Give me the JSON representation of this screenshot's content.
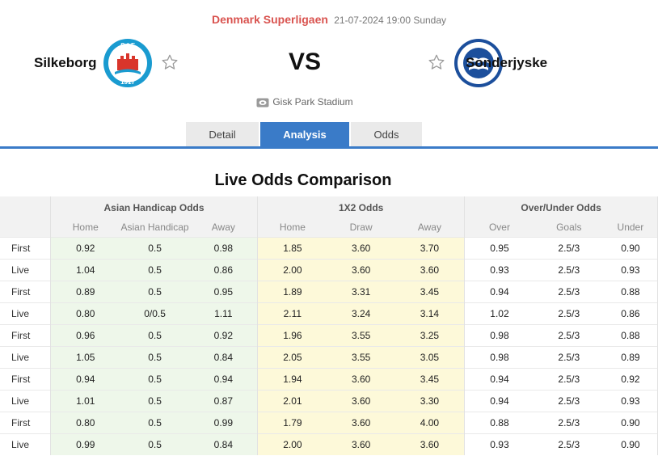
{
  "match": {
    "league": "Denmark Superligaen",
    "datetime": "21-07-2024 19:00 Sunday",
    "home_team": "Silkeborg",
    "away_team": "Sonderjyske",
    "vs_label": "VS",
    "stadium": "Gisk Park Stadium",
    "home_logo_top": "S·I·F",
    "home_logo_year": "1917",
    "icons": {
      "home_logo": "silkeborg-crest-icon",
      "away_logo": "sonderjyske-crest-icon",
      "favorite": "star-outline-icon",
      "stadium": "stadium-icon"
    }
  },
  "tabs": [
    {
      "label": "Detail",
      "active": false
    },
    {
      "label": "Analysis",
      "active": true
    },
    {
      "label": "Odds",
      "active": false
    }
  ],
  "section_title": "Live Odds Comparison",
  "table": {
    "groups": [
      "Asian Handicap Odds",
      "1X2 Odds",
      "Over/Under Odds"
    ],
    "subheaders": [
      "Home",
      "Asian Handicap",
      "Away",
      "Home",
      "Draw",
      "Away",
      "Over",
      "Goals",
      "Under"
    ],
    "rows": [
      {
        "label": "First",
        "cells": [
          "0.92",
          "0.5",
          "0.98",
          "1.85",
          "3.60",
          "3.70",
          "0.95",
          "2.5/3",
          "0.90"
        ]
      },
      {
        "label": "Live",
        "cells": [
          "1.04",
          "0.5",
          "0.86",
          "2.00",
          "3.60",
          "3.60",
          "0.93",
          "2.5/3",
          "0.93"
        ]
      },
      {
        "label": "First",
        "cells": [
          "0.89",
          "0.5",
          "0.95",
          "1.89",
          "3.31",
          "3.45",
          "0.94",
          "2.5/3",
          "0.88"
        ]
      },
      {
        "label": "Live",
        "cells": [
          "0.80",
          "0/0.5",
          "1.11",
          "2.11",
          "3.24",
          "3.14",
          "1.02",
          "2.5/3",
          "0.86"
        ]
      },
      {
        "label": "First",
        "cells": [
          "0.96",
          "0.5",
          "0.92",
          "1.96",
          "3.55",
          "3.25",
          "0.98",
          "2.5/3",
          "0.88"
        ]
      },
      {
        "label": "Live",
        "cells": [
          "1.05",
          "0.5",
          "0.84",
          "2.05",
          "3.55",
          "3.05",
          "0.98",
          "2.5/3",
          "0.89"
        ]
      },
      {
        "label": "First",
        "cells": [
          "0.94",
          "0.5",
          "0.94",
          "1.94",
          "3.60",
          "3.45",
          "0.94",
          "2.5/3",
          "0.92"
        ]
      },
      {
        "label": "Live",
        "cells": [
          "1.01",
          "0.5",
          "0.87",
          "2.01",
          "3.60",
          "3.30",
          "0.94",
          "2.5/3",
          "0.93"
        ]
      },
      {
        "label": "First",
        "cells": [
          "0.80",
          "0.5",
          "0.99",
          "1.79",
          "3.60",
          "4.00",
          "0.88",
          "2.5/3",
          "0.90"
        ]
      },
      {
        "label": "Live",
        "cells": [
          "0.99",
          "0.5",
          "0.84",
          "2.00",
          "3.60",
          "3.60",
          "0.93",
          "2.5/3",
          "0.90"
        ]
      }
    ]
  },
  "colors": {
    "accent": "#3a7bc8",
    "league": "#d9534f",
    "ah_bg": "#eef7ea",
    "x2_bg": "#fdf9d9",
    "home_crest": "#1a9bd0",
    "away_crest": "#1c4f9c"
  }
}
